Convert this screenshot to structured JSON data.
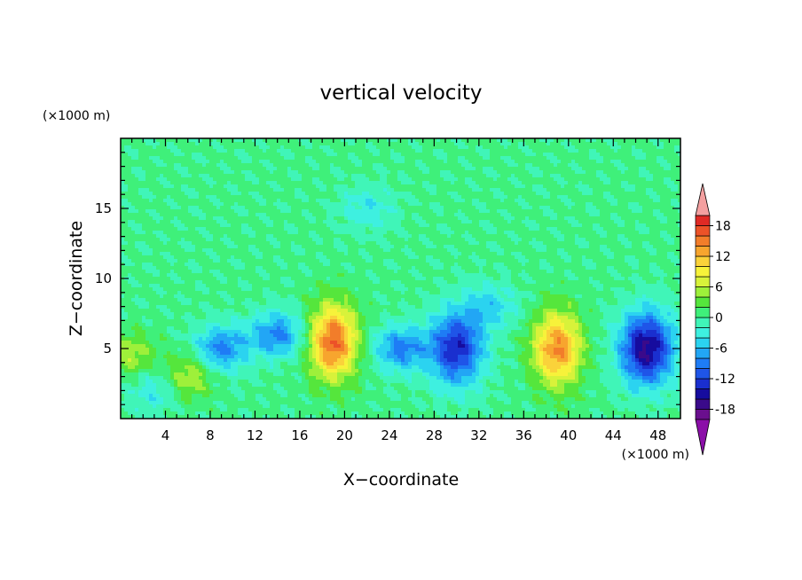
{
  "chart_data": {
    "type": "heatmap",
    "title": "vertical velocity",
    "xlabel": "X−coordinate",
    "ylabel": "Z−coordinate",
    "x_unit": "(×1000 m)",
    "y_unit": "(×1000 m)",
    "xlim": [
      0,
      50
    ],
    "ylim": [
      0,
      20
    ],
    "x_ticks": [
      4,
      8,
      12,
      16,
      20,
      24,
      28,
      32,
      36,
      40,
      44,
      48
    ],
    "y_ticks": [
      5,
      10,
      15
    ],
    "colorbar": {
      "levels": [
        -20,
        -18,
        -16,
        -14,
        -12,
        -10,
        -8,
        -6,
        -4,
        -2,
        0,
        2,
        4,
        6,
        8,
        10,
        12,
        14,
        16,
        18,
        20
      ],
      "tick_labels": [
        18,
        12,
        6,
        0,
        -6,
        -12,
        -18
      ],
      "colors": [
        "#6a0f8e",
        "#3a0a8a",
        "#160c9e",
        "#1a2fcf",
        "#1f55e8",
        "#1e7cf5",
        "#22a6f5",
        "#2bd3f0",
        "#3ef0e0",
        "#40f5b8",
        "#3ff07a",
        "#55e63c",
        "#9ef03a",
        "#d8f23a",
        "#f7f23a",
        "#fad23a",
        "#f7a52e",
        "#f27d2a",
        "#ec5228",
        "#e02a25"
      ],
      "over_color": "#f4a0a0",
      "under_color": "#8b0fa8"
    },
    "features": [
      {
        "x": 19,
        "z": 5.5,
        "value": 16,
        "kind": "updraft"
      },
      {
        "x": 39,
        "z": 5,
        "value": 14,
        "kind": "updraft"
      },
      {
        "x": 30,
        "z": 5,
        "value": -14,
        "kind": "downdraft"
      },
      {
        "x": 47,
        "z": 5,
        "value": -17,
        "kind": "downdraft"
      },
      {
        "x": 25,
        "z": 5,
        "value": -9,
        "kind": "downdraft"
      },
      {
        "x": 9,
        "z": 5,
        "value": -9,
        "kind": "downdraft"
      },
      {
        "x": 14,
        "z": 6,
        "value": -9,
        "kind": "downdraft"
      },
      {
        "x": 6,
        "z": 3,
        "value": 6,
        "kind": "updraft"
      },
      {
        "x": 1,
        "z": 4.5,
        "value": 5,
        "kind": "updraft"
      },
      {
        "x": 33,
        "z": 8,
        "value": -5,
        "kind": "downdraft"
      },
      {
        "x": 22,
        "z": 15,
        "value": -4,
        "kind": "downdraft"
      },
      {
        "x": 3,
        "z": 2,
        "value": -4,
        "kind": "downdraft"
      }
    ]
  }
}
